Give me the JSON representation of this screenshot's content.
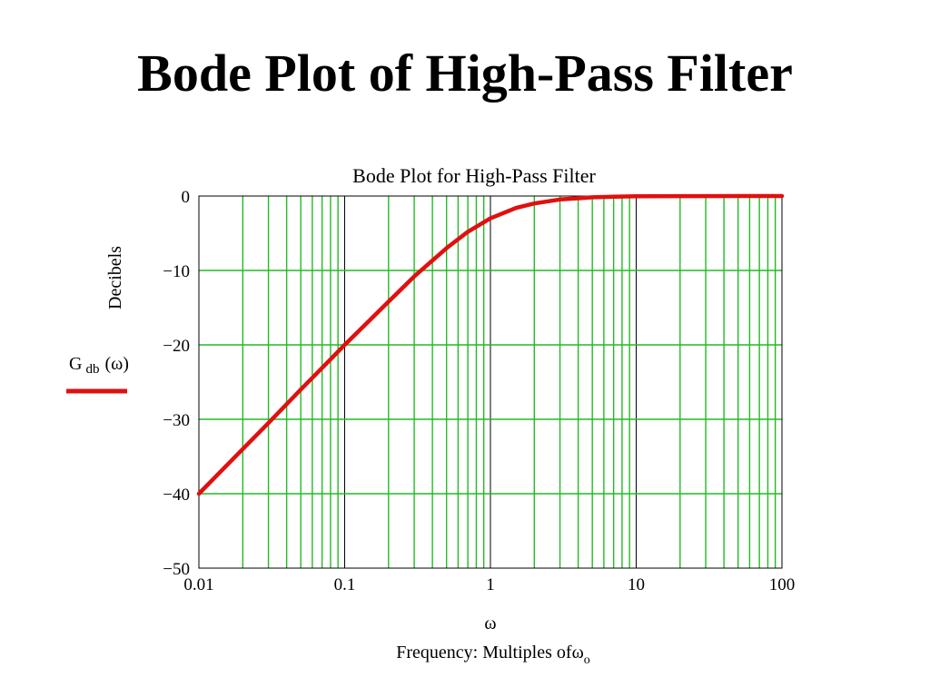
{
  "slide": {
    "title": "Bode Plot of High-Pass Filter"
  },
  "colors": {
    "grid": "#22bb22",
    "decade_grid": "#000000",
    "curve": "#e01010",
    "axis": "#000000"
  },
  "chart_data": {
    "type": "line",
    "title": "Bode Plot for High-Pass Filter",
    "ylabel": "Decibels",
    "legend_label": {
      "main": "G",
      "subscript": "db",
      "argument": "(ω)"
    },
    "xlabel_symbol": "ω",
    "xlabel": {
      "text": "Frequency: Multiples of",
      "symbol": "ω",
      "subscript": "o"
    },
    "x_scale": "log",
    "xlim": [
      0.01,
      100
    ],
    "ylim": [
      -50,
      0
    ],
    "x_ticks": [
      0.01,
      0.1,
      1,
      10,
      100
    ],
    "x_tick_labels": [
      "0.01",
      "0.1",
      "1",
      "10",
      "100"
    ],
    "y_ticks": [
      0,
      -10,
      -20,
      -30,
      -40,
      -50
    ],
    "y_tick_labels": [
      "0",
      "−10",
      "−20",
      "−30",
      "−40",
      "−50"
    ],
    "grid": true,
    "series": [
      {
        "name": "G db (ω)",
        "x": [
          0.01,
          0.02,
          0.03,
          0.05,
          0.07,
          0.1,
          0.15,
          0.2,
          0.3,
          0.5,
          0.7,
          1,
          1.5,
          2,
          3,
          5,
          7,
          10,
          20,
          50,
          100
        ],
        "y": [
          -40.0,
          -34.0,
          -30.5,
          -26.0,
          -23.1,
          -20.0,
          -16.6,
          -14.2,
          -10.8,
          -7.0,
          -4.8,
          -3.0,
          -1.6,
          -1.0,
          -0.46,
          -0.17,
          -0.09,
          -0.04,
          -0.01,
          0.0,
          0.0
        ]
      }
    ]
  }
}
